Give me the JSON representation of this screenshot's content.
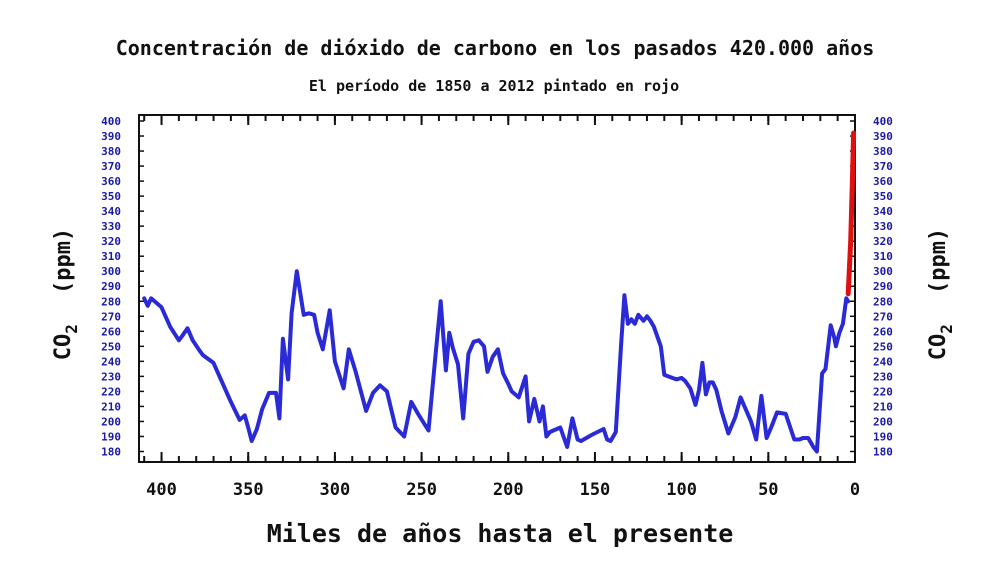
{
  "chart_data": {
    "type": "line",
    "title": "Concentración de dióxido de carbono en los pasados 420.000 años",
    "subtitle": "El período de 1850 a 2012 pintado en rojo",
    "xlabel": "Miles de años hasta el presente",
    "ylabel_main": "CO",
    "ylabel_sub": "2",
    "ylabel_unit": "(ppm)",
    "xlim": [
      413,
      0
    ],
    "ylim": [
      173,
      404
    ],
    "x_ticks": [
      400,
      350,
      300,
      250,
      200,
      150,
      100,
      50,
      0
    ],
    "x_tick_labels": [
      "400",
      "350",
      "300",
      "250",
      "200",
      "150",
      "100",
      "50",
      "0"
    ],
    "y_ticks": [
      180,
      190,
      200,
      210,
      220,
      230,
      240,
      250,
      260,
      270,
      280,
      290,
      300,
      310,
      320,
      330,
      340,
      350,
      360,
      370,
      380,
      390,
      400
    ],
    "y_tick_labels": [
      "180",
      "190",
      "200",
      "210",
      "220",
      "230",
      "240",
      "250",
      "260",
      "270",
      "280",
      "290",
      "300",
      "310",
      "320",
      "330",
      "340",
      "350",
      "360",
      "370",
      "380",
      "390",
      "400"
    ],
    "colors": {
      "series": "#2a2ad6",
      "modern": "#e01010",
      "axis": "#111111",
      "tick_text": "#1a1aa6"
    },
    "series": [
      {
        "x": [
          410,
          408,
          406,
          400,
          395,
          390,
          388,
          385,
          382,
          378,
          376,
          370,
          365,
          360,
          355,
          352,
          350,
          348,
          345,
          342,
          338,
          336,
          334,
          332,
          330,
          327,
          325,
          322,
          318,
          315,
          312,
          310,
          307,
          303,
          300,
          295,
          292,
          288,
          282,
          278,
          274,
          270,
          265,
          260,
          256,
          252,
          246,
          242,
          239,
          236,
          234,
          232,
          229,
          226,
          223,
          220,
          217,
          214,
          212,
          209,
          206,
          203,
          200,
          198,
          194,
          190,
          188,
          185,
          182,
          180,
          178,
          176,
          170,
          166,
          163,
          160,
          158,
          152,
          145,
          143,
          141,
          138,
          135,
          133,
          131,
          129,
          127,
          125,
          122,
          120,
          118,
          116,
          112,
          110,
          103,
          100,
          98,
          95,
          92,
          90,
          88,
          86,
          84,
          82,
          80,
          77,
          73,
          69,
          66,
          60,
          57,
          54,
          51,
          48,
          45,
          40,
          35,
          32,
          30,
          27,
          24,
          22,
          19,
          17,
          14,
          12,
          11,
          9,
          7,
          5,
          4
        ],
        "y": [
          282,
          277,
          282,
          276,
          263,
          254,
          257,
          262,
          254,
          247,
          244,
          239,
          226,
          213,
          201,
          204,
          196,
          187,
          195,
          208,
          219,
          219,
          219,
          202,
          255,
          228,
          272,
          300,
          271,
          272,
          271,
          259,
          248,
          274,
          240,
          222,
          248,
          233,
          207,
          219,
          224,
          220,
          196,
          190,
          213,
          205,
          194,
          244,
          280,
          234,
          259,
          249,
          238,
          202,
          245,
          253,
          254,
          250,
          233,
          243,
          248,
          232,
          225,
          220,
          216,
          230,
          200,
          215,
          200,
          210,
          190,
          193,
          196,
          183,
          202,
          188,
          187,
          191,
          195,
          188,
          187,
          193,
          250,
          284,
          265,
          268,
          265,
          271,
          267,
          270,
          267,
          263,
          250,
          231,
          228,
          229,
          227,
          222,
          211,
          221,
          239,
          218,
          226,
          226,
          221,
          207,
          192,
          203,
          216,
          200,
          188,
          217,
          189,
          197,
          206,
          205,
          188,
          188,
          189,
          189,
          183,
          180,
          232,
          235,
          264,
          256,
          250,
          259,
          265,
          282,
          280
        ]
      },
      {
        "x": [
          3.9,
          2.5,
          1.5,
          0.8
        ],
        "y": [
          285,
          320,
          360,
          392
        ]
      }
    ]
  }
}
